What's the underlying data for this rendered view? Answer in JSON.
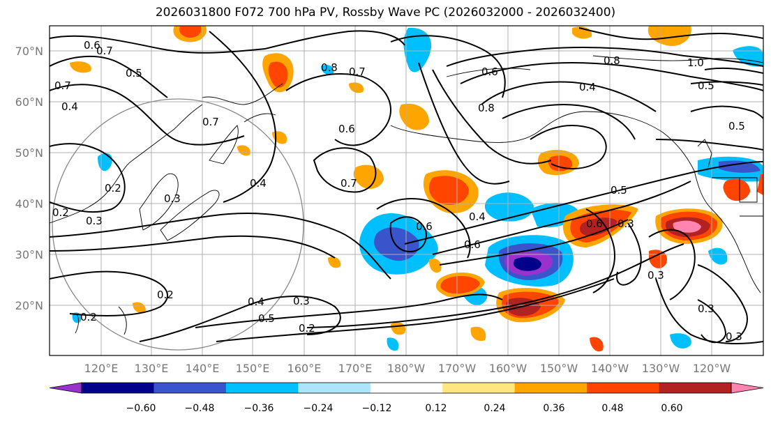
{
  "title": "2026031800 F072 700 hPa PV, Rossby Wave PC (2026032000 - 2026032400)",
  "map": {
    "lat_ticks": [
      "70°N",
      "60°N",
      "50°N",
      "40°N",
      "30°N",
      "20°N"
    ],
    "lon_ticks": [
      "120°E",
      "130°E",
      "140°E",
      "150°E",
      "160°E",
      "170°E",
      "180°W",
      "170°W",
      "160°W",
      "150°W",
      "140°W",
      "130°W",
      "120°W"
    ],
    "contour_labels": [
      {
        "text": "0.6"
      },
      {
        "text": "0.7"
      },
      {
        "text": "0.5"
      },
      {
        "text": "0.4"
      },
      {
        "text": "0.7"
      },
      {
        "text": "0.8"
      },
      {
        "text": "0.7"
      },
      {
        "text": "0.6"
      },
      {
        "text": "0.8"
      },
      {
        "text": "0.4"
      },
      {
        "text": "1.0"
      },
      {
        "text": "0.5"
      },
      {
        "text": "0.8"
      },
      {
        "text": "0.6"
      },
      {
        "text": "0.7"
      },
      {
        "text": "0.3"
      },
      {
        "text": "0.4"
      },
      {
        "text": "0.3"
      },
      {
        "text": "0.2"
      },
      {
        "text": "0.2"
      },
      {
        "text": "0.7"
      },
      {
        "text": "0.4"
      },
      {
        "text": "0.5"
      },
      {
        "text": "0.6"
      },
      {
        "text": "0.6"
      },
      {
        "text": "0.6"
      },
      {
        "text": "0.3"
      },
      {
        "text": "0.4"
      },
      {
        "text": "0.5"
      },
      {
        "text": "0.3"
      },
      {
        "text": "0.2"
      },
      {
        "text": "0.2"
      },
      {
        "text": "0.2"
      },
      {
        "text": "0.3"
      },
      {
        "text": "0.5"
      },
      {
        "text": "0.3"
      },
      {
        "text": "0.3"
      }
    ]
  },
  "colorbar": {
    "ticks": [
      "−0.60",
      "−0.48",
      "−0.36",
      "−0.24",
      "−0.12",
      "0.12",
      "0.24",
      "0.36",
      "0.48",
      "0.60"
    ],
    "colors": [
      "#9932cc",
      "#00008b",
      "#3a55cc",
      "#00bfff",
      "#aee4fa",
      "#ffffff",
      "#ffe680",
      "#ffa500",
      "#ff4500",
      "#b22222",
      "#ff85b0"
    ]
  }
}
